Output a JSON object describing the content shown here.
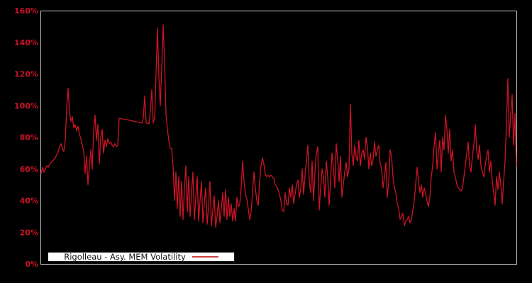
{
  "chart": {
    "background": "#000000",
    "border_color": "#c6c6c6",
    "line_color": "#cd1426",
    "tick_label_color": "#c81226",
    "legend": {
      "label": "Rigolleau - Asy. MEM Volatility",
      "marker_color": "#d04040",
      "position": "bottom-left"
    }
  },
  "chart_data": {
    "type": "line",
    "title": "",
    "xlabel": "",
    "ylabel": "",
    "unit": "%",
    "ylim": [
      0,
      160
    ],
    "y_ticks": [
      "0%",
      "20%",
      "40%",
      "60%",
      "80%",
      "100%",
      "120%",
      "140%",
      "160%"
    ],
    "x_tick_labels_visible": false,
    "grid": false,
    "legend_position": "bottom-left",
    "series": [
      {
        "name": "Rigolleau - Asy. MEM Volatility",
        "values": [
          57,
          61,
          58,
          60,
          62,
          61,
          63,
          64,
          65,
          66,
          67,
          69,
          71,
          74,
          76,
          73,
          71,
          78,
          98,
          111,
          96,
          90,
          93,
          86,
          88,
          84,
          87,
          82,
          79,
          75,
          71,
          57,
          68,
          50,
          62,
          72,
          60,
          84,
          94,
          78,
          88,
          63,
          80,
          85,
          70,
          78,
          74,
          79,
          76,
          77,
          75,
          74,
          76,
          74,
          75,
          92,
          91.8,
          91.6,
          91.5,
          91.3,
          91.1,
          91,
          90.8,
          90.6,
          90.4,
          90.2,
          90,
          89.8,
          89.6,
          89.4,
          89.2,
          89,
          92,
          106,
          89,
          88.8,
          88.6,
          96,
          110,
          89,
          92,
          120,
          149,
          118,
          100,
          124,
          151,
          128,
          95,
          85,
          78,
          73,
          73,
          62,
          40,
          58,
          35,
          55,
          30,
          52,
          28,
          48,
          62,
          33,
          55,
          30,
          45,
          58,
          28,
          42,
          55,
          27,
          40,
          52,
          26,
          38,
          48,
          25,
          36,
          52,
          24,
          34,
          43,
          23,
          30,
          40,
          26,
          35,
          45,
          30,
          47,
          28,
          42,
          30,
          38,
          27,
          35,
          27,
          42,
          36,
          38,
          48,
          65,
          52,
          44,
          41,
          35,
          28,
          33,
          45,
          58,
          48,
          40,
          37,
          52,
          62,
          67,
          63,
          57,
          55,
          56,
          55,
          56,
          55,
          54,
          50,
          49,
          47,
          44,
          40,
          34,
          33,
          45,
          38,
          37,
          48,
          42,
          50,
          38,
          44,
          50,
          53,
          42,
          48,
          60,
          44,
          56,
          65,
          75,
          52,
          45,
          65,
          40,
          58,
          70,
          74,
          34,
          48,
          60,
          55,
          42,
          65,
          55,
          37,
          52,
          70,
          62,
          48,
          76,
          66,
          52,
          68,
          42,
          50,
          58,
          64,
          55,
          60,
          101,
          70,
          62,
          75,
          68,
          65,
          78,
          62,
          70,
          72,
          66,
          80,
          74,
          60,
          70,
          62,
          66,
          77,
          68,
          72,
          75,
          63,
          60,
          48,
          55,
          64,
          42,
          52,
          72,
          68,
          55,
          48,
          45,
          38,
          35,
          28,
          30,
          32,
          24,
          27,
          28,
          30,
          26,
          28,
          34,
          40,
          50,
          61,
          52,
          45,
          50,
          42,
          48,
          44,
          40,
          36,
          42,
          55,
          62,
          75,
          83,
          60,
          70,
          78,
          58,
          80,
          72,
          94,
          85,
          70,
          85,
          65,
          72,
          58,
          55,
          50,
          48,
          47,
          46,
          48,
          55,
          62,
          70,
          77,
          62,
          58,
          68,
          75,
          88,
          72,
          66,
          75,
          62,
          58,
          55,
          62,
          68,
          72,
          58,
          65,
          52,
          45,
          37,
          55,
          47,
          58,
          50,
          38,
          52,
          65,
          89,
          117,
          80,
          95,
          107,
          75,
          95,
          62
        ]
      }
    ]
  }
}
